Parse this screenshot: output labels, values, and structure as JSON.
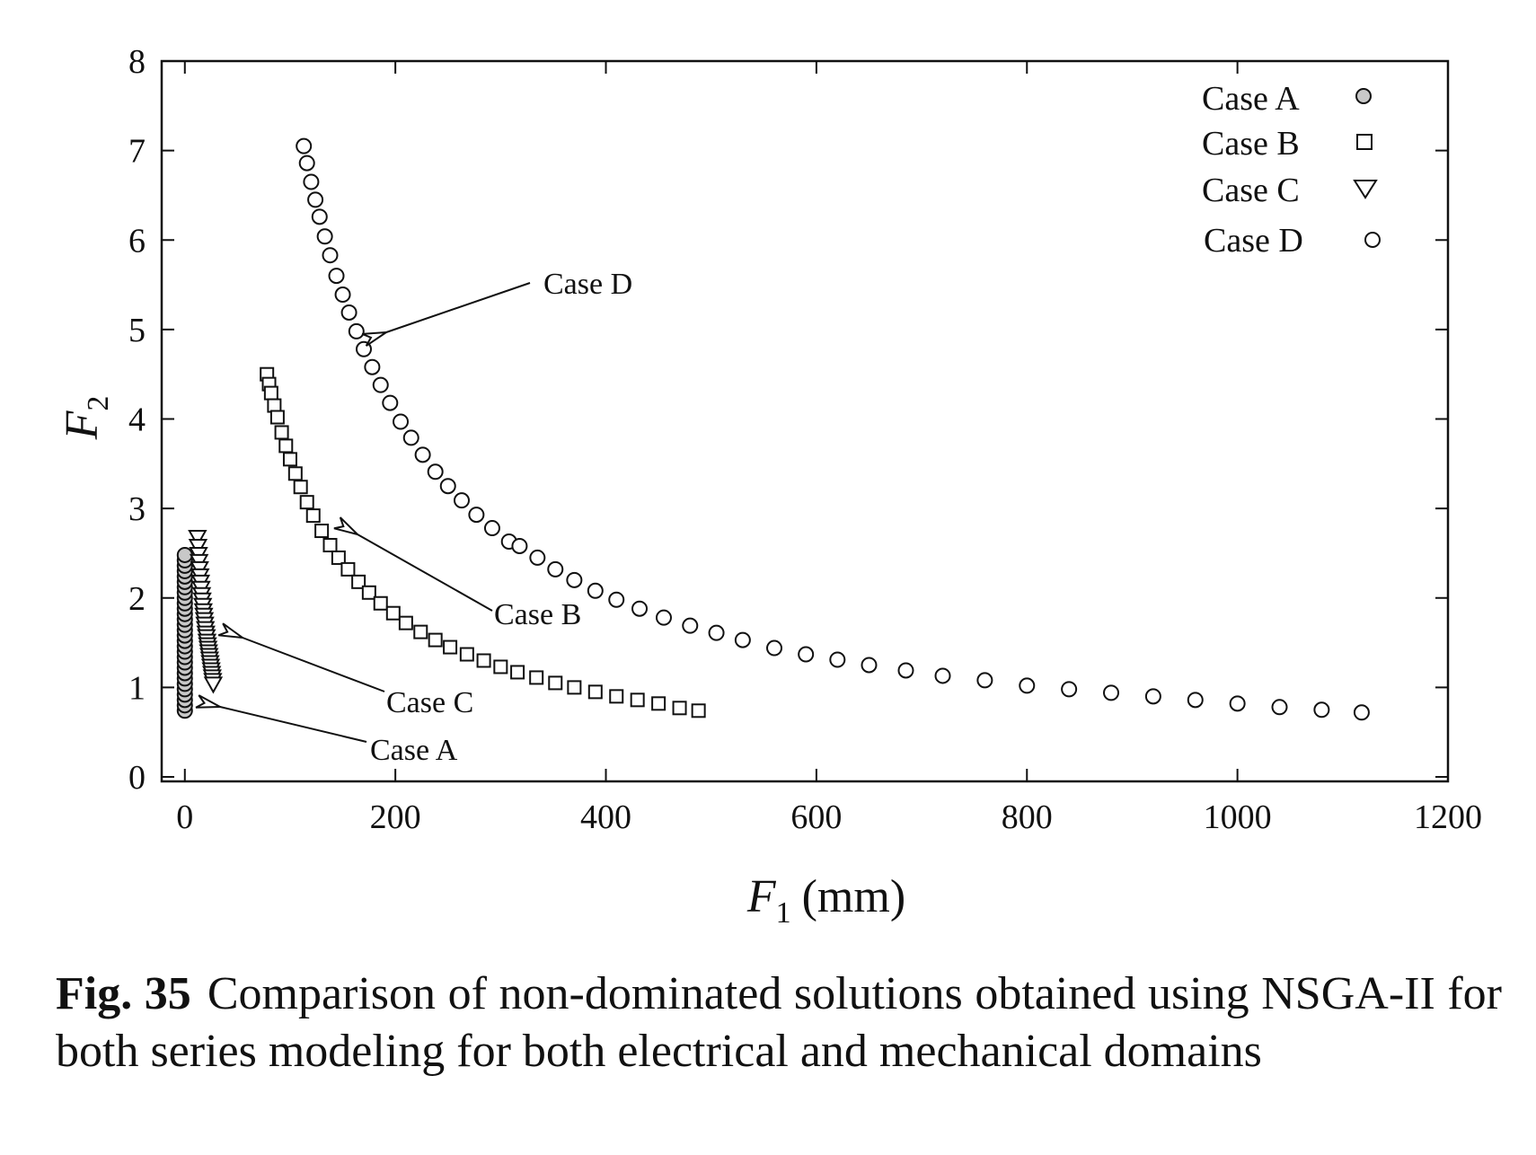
{
  "chart_data": {
    "type": "scatter",
    "xlabel_var": "F",
    "xlabel_sub": "1",
    "xlabel_unit": "(mm)",
    "ylabel_var": "F",
    "ylabel_sub": "2",
    "xlim": [
      -22,
      1200
    ],
    "ylim": [
      -0.05,
      8
    ],
    "xticks": [
      0,
      200,
      400,
      600,
      800,
      1000,
      1200
    ],
    "yticks": [
      0,
      1,
      2,
      3,
      4,
      5,
      6,
      7,
      8
    ],
    "legend_position": "top-right",
    "legend": [
      "Case A",
      "Case B",
      "Case C",
      "Case D"
    ],
    "series": [
      {
        "name": "Case A",
        "marker": "circle-filled",
        "color": "#c8c8c8",
        "x": [
          0,
          0,
          0,
          0,
          0,
          0,
          0,
          0,
          0,
          0,
          0,
          0,
          0,
          0,
          0,
          0,
          0,
          0,
          0,
          0,
          0,
          0,
          0,
          0,
          0,
          0,
          0,
          0,
          0,
          0
        ],
        "y": [
          0.74,
          0.8,
          0.86,
          0.92,
          0.98,
          1.04,
          1.1,
          1.16,
          1.22,
          1.28,
          1.34,
          1.4,
          1.46,
          1.52,
          1.58,
          1.64,
          1.7,
          1.76,
          1.82,
          1.88,
          1.94,
          2.0,
          2.06,
          2.12,
          2.18,
          2.24,
          2.3,
          2.36,
          2.42,
          2.48
        ]
      },
      {
        "name": "Case B",
        "marker": "square",
        "color": "#ffffff",
        "x": [
          78,
          80,
          82,
          85,
          88,
          92,
          96,
          100,
          105,
          110,
          116,
          122,
          130,
          138,
          146,
          155,
          165,
          175,
          186,
          198,
          210,
          224,
          238,
          252,
          268,
          284,
          300,
          316,
          334,
          352,
          370,
          390,
          410,
          430,
          450,
          470,
          488
        ],
        "y": [
          4.5,
          4.39,
          4.29,
          4.15,
          4.02,
          3.85,
          3.7,
          3.55,
          3.39,
          3.24,
          3.07,
          2.92,
          2.75,
          2.59,
          2.45,
          2.32,
          2.18,
          2.06,
          1.94,
          1.83,
          1.72,
          1.62,
          1.53,
          1.45,
          1.37,
          1.3,
          1.23,
          1.17,
          1.11,
          1.05,
          1.0,
          0.95,
          0.9,
          0.86,
          0.82,
          0.77,
          0.74
        ]
      },
      {
        "name": "Case C",
        "marker": "triangle-down",
        "color": "#ffffff",
        "x": [
          12,
          12.5,
          13,
          13.5,
          14,
          14.5,
          15,
          15.5,
          16,
          16.5,
          17,
          17.5,
          18,
          18.5,
          19,
          19.5,
          20,
          20.5,
          21,
          21.5,
          22,
          22.5,
          23,
          23.5,
          24,
          24.5,
          25,
          25.5,
          26,
          26.5,
          27
        ],
        "y": [
          2.68,
          2.58,
          2.49,
          2.41,
          2.33,
          2.25,
          2.18,
          2.11,
          2.04,
          1.98,
          1.92,
          1.86,
          1.81,
          1.76,
          1.71,
          1.66,
          1.61,
          1.57,
          1.52,
          1.48,
          1.44,
          1.4,
          1.36,
          1.32,
          1.28,
          1.24,
          1.2,
          1.16,
          1.12,
          1.08,
          1.04
        ]
      },
      {
        "name": "Case D",
        "marker": "circle",
        "color": "#ffffff",
        "x": [
          113,
          116,
          120,
          124,
          128,
          133,
          138,
          144,
          150,
          156,
          163,
          170,
          178,
          186,
          195,
          205,
          215,
          226,
          238,
          250,
          263,
          277,
          292,
          308,
          318,
          335,
          352,
          370,
          390,
          410,
          432,
          455,
          480,
          505,
          530,
          560,
          590,
          620,
          650,
          685,
          720,
          760,
          800,
          840,
          880,
          920,
          960,
          1000,
          1040,
          1080,
          1118
        ],
        "y": [
          7.05,
          6.86,
          6.65,
          6.45,
          6.26,
          6.04,
          5.83,
          5.6,
          5.39,
          5.19,
          4.98,
          4.78,
          4.58,
          4.38,
          4.18,
          3.97,
          3.79,
          3.6,
          3.41,
          3.25,
          3.09,
          2.93,
          2.78,
          2.63,
          2.58,
          2.45,
          2.32,
          2.2,
          2.08,
          1.98,
          1.88,
          1.78,
          1.69,
          1.61,
          1.53,
          1.44,
          1.37,
          1.31,
          1.25,
          1.19,
          1.13,
          1.08,
          1.02,
          0.98,
          0.94,
          0.9,
          0.86,
          0.82,
          0.78,
          0.75,
          0.72
        ]
      }
    ],
    "annotations": [
      "Case D",
      "Case B",
      "Case C",
      "Case A"
    ]
  },
  "caption": {
    "label": "Fig. 35",
    "text": "Comparison of non-dominated solutions obtained using NSGA-II for both series modeling for both electrical and mechanical domains"
  }
}
